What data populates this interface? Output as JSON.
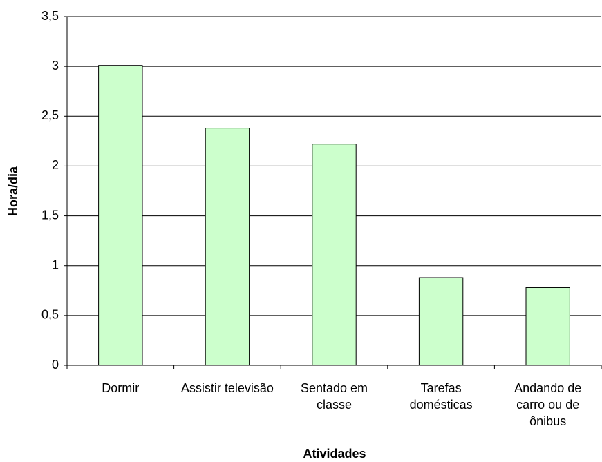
{
  "chart_data": {
    "type": "bar",
    "x_label": "Atividades",
    "y_label": "Hora/dia",
    "categories": [
      "Dormir",
      "Assistir televisão",
      "Sentado em classe",
      "Tarefas domésticas",
      "Andando de carro ou de ônibus"
    ],
    "values": [
      3.01,
      2.38,
      2.22,
      0.88,
      0.78
    ],
    "color": "#ccffcc",
    "ylim": [
      0,
      3.5
    ],
    "yticks": [
      0,
      {
        "value": 0.5,
        "label": "0,5"
      },
      1,
      {
        "value": 1.5,
        "label": "1,5"
      },
      2,
      {
        "value": 2.5,
        "label": "2,5"
      },
      3,
      {
        "value": 3.5,
        "label": "3,5"
      }
    ],
    "grid": true
  }
}
